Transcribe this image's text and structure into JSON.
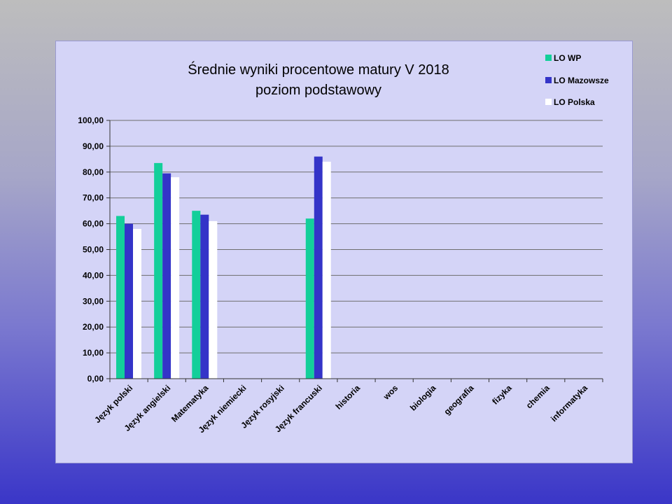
{
  "chart_data": {
    "type": "bar",
    "title_lines": [
      "Średnie wyniki procentowe matury V 2018",
      "poziom podstawowy"
    ],
    "categories": [
      "Język polski",
      "Język angielski",
      "Matematyka",
      "Język niemiecki",
      "Język rosyjski",
      "Język francuski",
      "historia",
      "wos",
      "biologia",
      "geografia",
      "fizyka",
      "chemia",
      "informatyka"
    ],
    "series": [
      {
        "name": "LO WP",
        "color": "#13cf9a",
        "values": [
          63,
          83.5,
          65,
          null,
          null,
          62,
          null,
          null,
          null,
          null,
          null,
          null,
          null
        ]
      },
      {
        "name": "LO Mazowsze",
        "color": "#3434c8",
        "values": [
          60,
          79.5,
          63.5,
          null,
          null,
          86,
          null,
          null,
          null,
          null,
          null,
          null,
          null
        ]
      },
      {
        "name": "LO Polska",
        "color": "#ffffff",
        "values": [
          58,
          78,
          61,
          null,
          null,
          84,
          null,
          null,
          null,
          null,
          null,
          null,
          null
        ]
      }
    ],
    "ylim": [
      0,
      100
    ],
    "yticks": [
      "0,00",
      "10,00",
      "20,00",
      "30,00",
      "40,00",
      "50,00",
      "60,00",
      "70,00",
      "80,00",
      "90,00",
      "100,00"
    ],
    "grid": true,
    "legend_position": "top-right"
  }
}
